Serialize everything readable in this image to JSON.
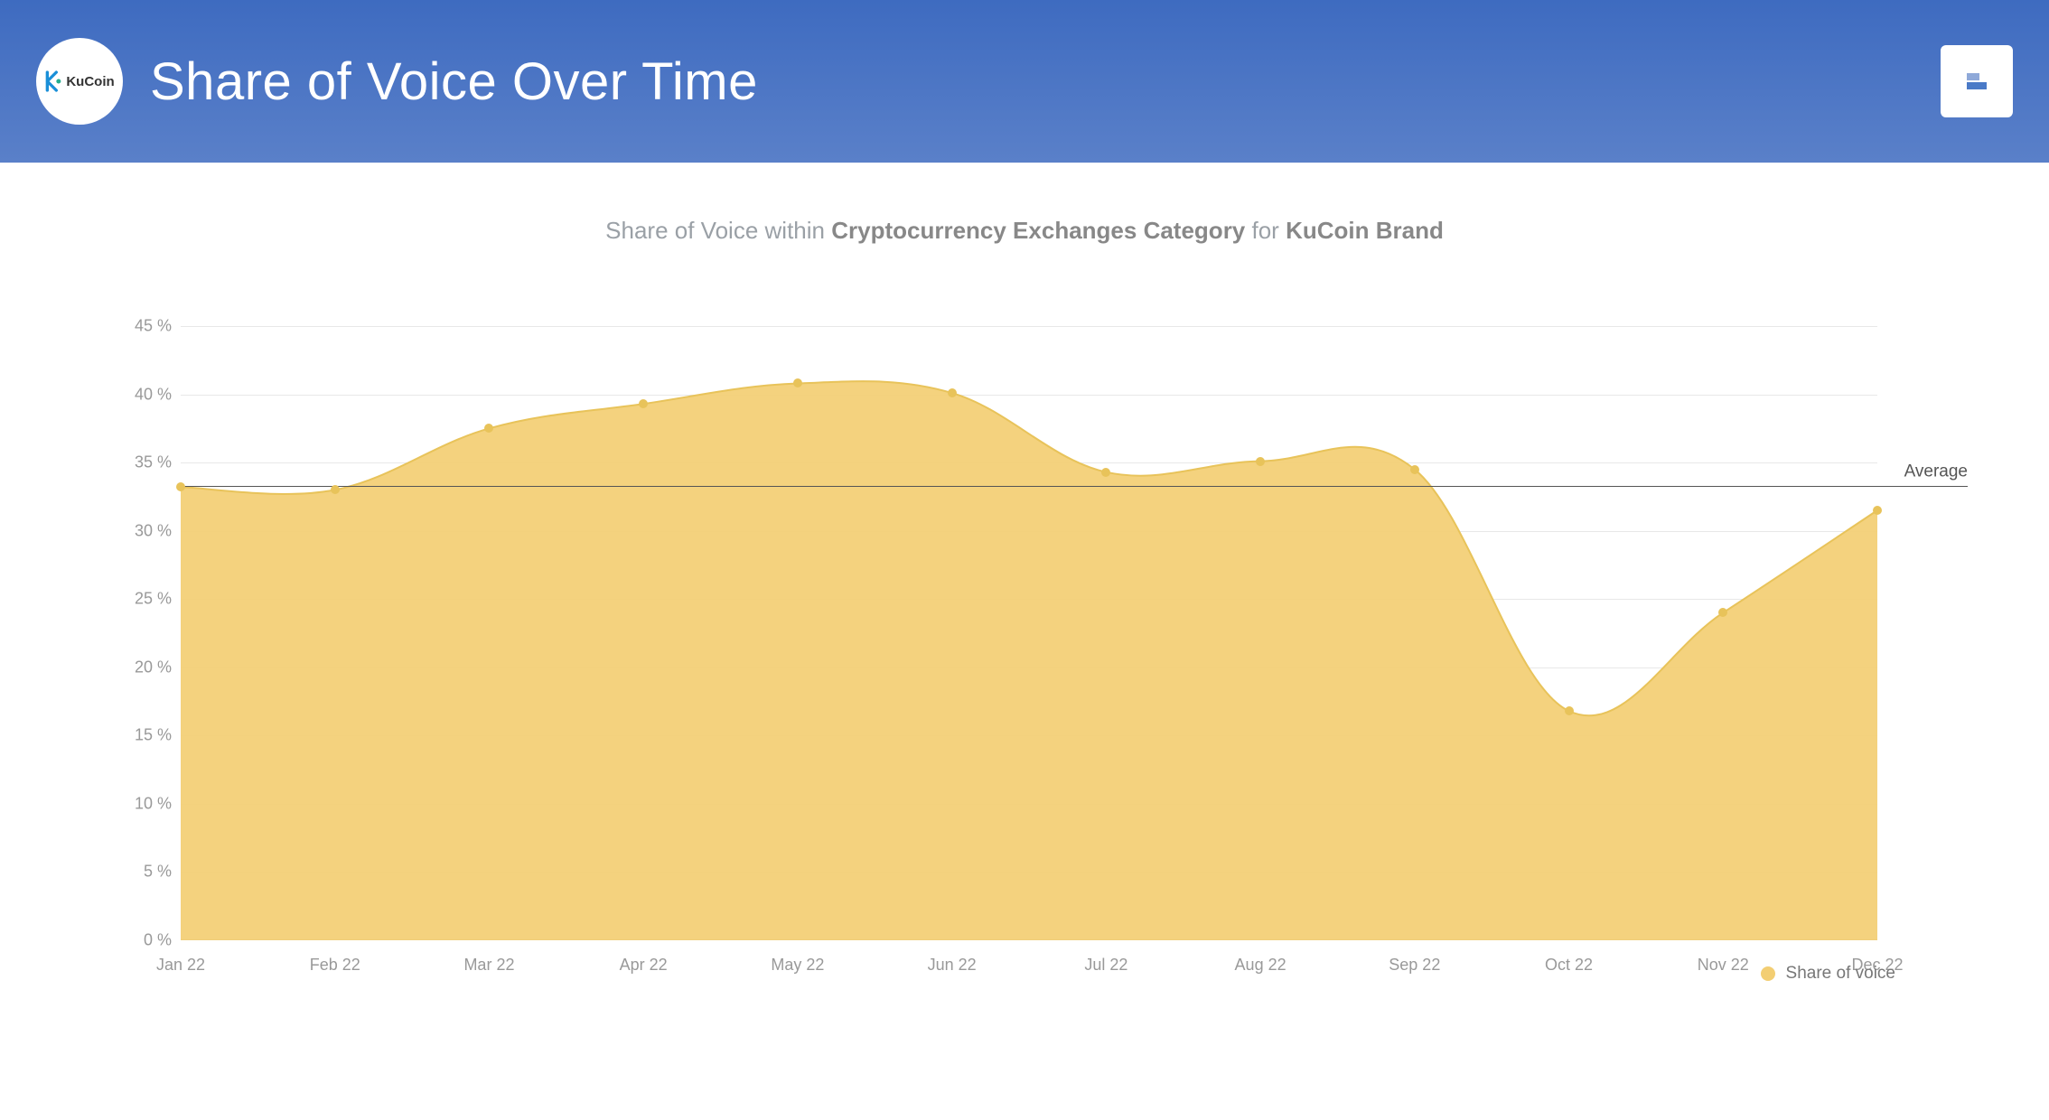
{
  "header": {
    "title": "Share of Voice Over Time",
    "logo_brand": "KuCoin",
    "logo_bg": "#ffffff",
    "logo_text_color": "#333333",
    "logo_accent": "#24ae8f",
    "logo_blue": "#1a8fd8",
    "gradient_top": "#3e6bc0",
    "gradient_bottom": "#5a80c9",
    "icon_color": "#4a7ac7"
  },
  "subtitle": {
    "prefix": "Share of Voice within ",
    "bold1": "Cryptocurrency Exchanges Category",
    "mid": " for ",
    "bold2": "KuCoin Brand"
  },
  "chart": {
    "type": "area",
    "series_name": "Share of voice",
    "categories": [
      "Jan 22",
      "Feb 22",
      "Mar 22",
      "Apr 22",
      "May 22",
      "Jun 22",
      "Jul 22",
      "Aug 22",
      "Sep 22",
      "Oct 22",
      "Nov 22",
      "Dec 22"
    ],
    "values": [
      33.2,
      33.0,
      37.5,
      39.3,
      40.8,
      40.1,
      34.3,
      35.1,
      34.5,
      16.8,
      24.0,
      31.5
    ],
    "ylim": [
      0,
      45
    ],
    "ytick_step": 5,
    "y_tick_suffix": " %",
    "average_value": 33.3,
    "average_label": "Average",
    "fill_color": "#f3ce73",
    "fill_opacity": 0.92,
    "line_color": "#e8c35a",
    "line_width": 2,
    "point_color": "#e8c35a",
    "point_radius": 5,
    "background_color": "#ffffff",
    "grid_color": "#e8e8e8",
    "axis_text_color": "#999999",
    "avg_line_color": "#555555",
    "legend_text_color": "#777777"
  }
}
